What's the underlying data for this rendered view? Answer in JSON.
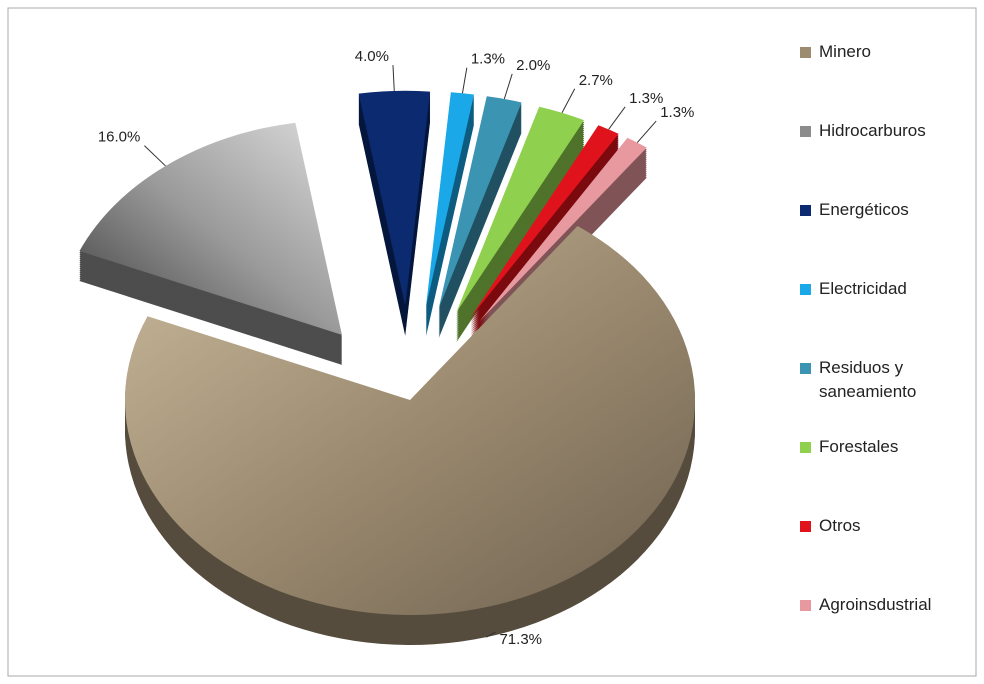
{
  "chart_data": {
    "type": "pie",
    "categories": [
      "Minero",
      "Hidrocarburos",
      "Energéticos",
      "Electricidad",
      "Residuos y saneamiento",
      "Forestales",
      "Otros",
      "Agroinsdustrial"
    ],
    "values": [
      71.3,
      16.0,
      4.0,
      1.3,
      2.0,
      2.7,
      1.3,
      1.3
    ],
    "value_labels": [
      "71.3%",
      "16.0%",
      "4.0%",
      "1.3%",
      "2.0%",
      "2.7%",
      "1.3%",
      "1.3%"
    ],
    "colors": [
      "#9c8b70",
      "#8c8c8c",
      "#0b2a6f",
      "#1aa8e8",
      "#3a94b2",
      "#8fd14f",
      "#e0121c",
      "#e8999f"
    ],
    "legend": "right"
  }
}
